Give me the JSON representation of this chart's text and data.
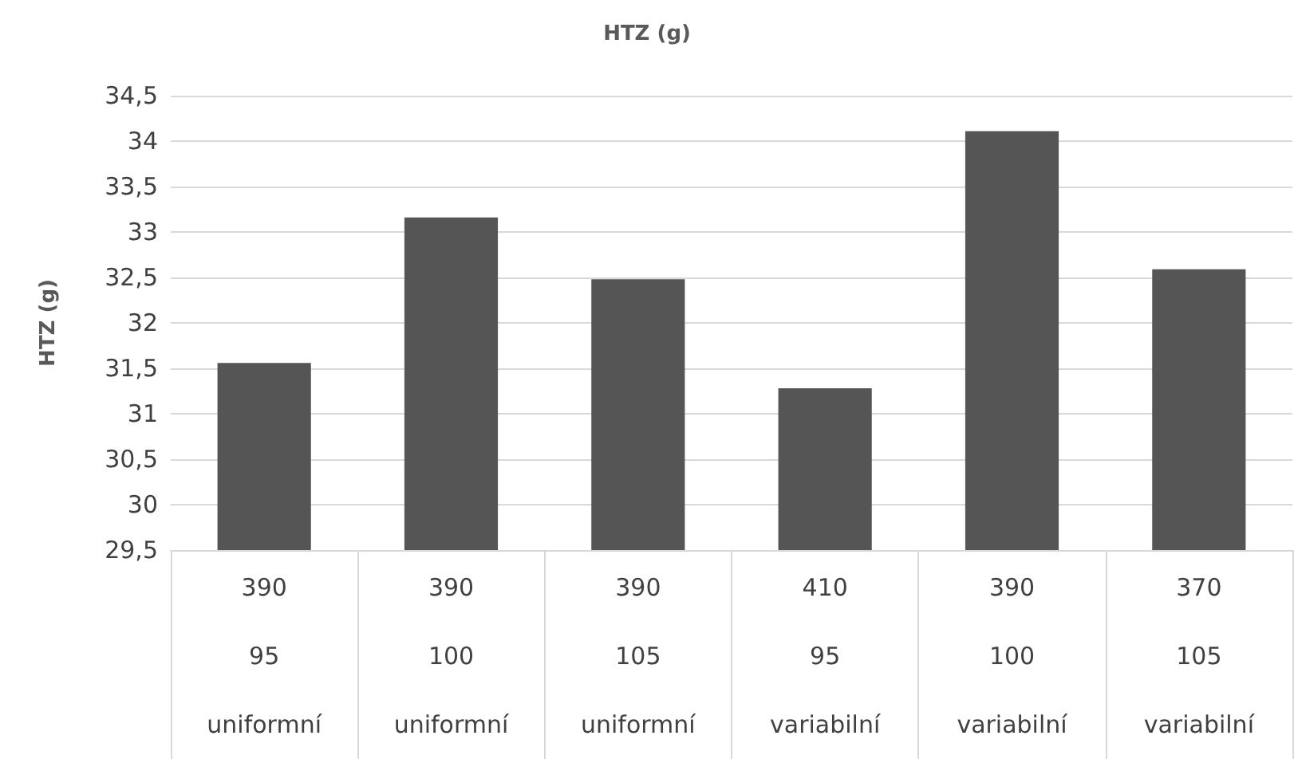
{
  "chart_data": {
    "type": "bar",
    "title": "HTZ (g)",
    "ylabel": "HTZ (g)",
    "categories": [
      "390\n95\nuniformní",
      "390\n100\nuniformní",
      "390\n105\nuniformní",
      "410\n95\nvariabilní",
      "390\n100\nvariabilní",
      "370\n105\nvariabilní"
    ],
    "values": [
      31.56,
      33.16,
      32.48,
      31.28,
      34.11,
      32.59
    ],
    "color": "#555555",
    "ylim": [
      29.5,
      34.5
    ],
    "yticks": [
      {
        "value": 29.5,
        "label": "29,5"
      },
      {
        "value": 30,
        "label": "30"
      },
      {
        "value": 30.5,
        "label": "30,5"
      },
      {
        "value": 31,
        "label": "31"
      },
      {
        "value": 31.5,
        "label": "31,5"
      },
      {
        "value": 32,
        "label": "32"
      },
      {
        "value": 32.5,
        "label": "32,5"
      },
      {
        "value": 33,
        "label": "33"
      },
      {
        "value": 33.5,
        "label": "33,5"
      },
      {
        "value": 34,
        "label": "34"
      },
      {
        "value": 34.5,
        "label": "34,5"
      }
    ],
    "grid": "y"
  }
}
